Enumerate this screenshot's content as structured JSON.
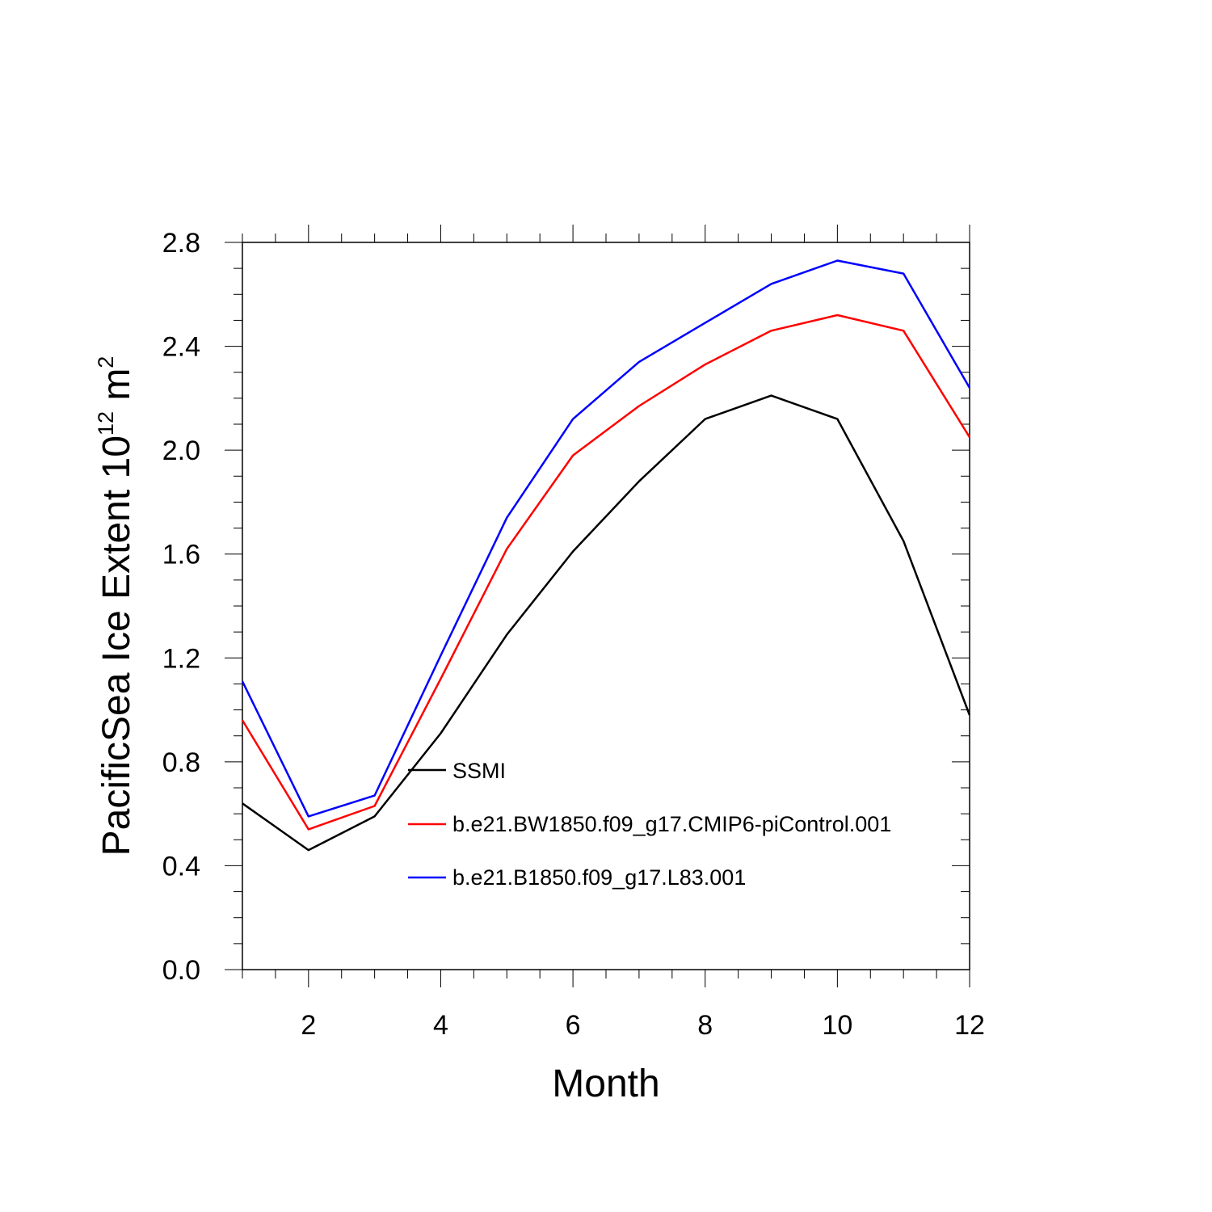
{
  "chart_data": {
    "type": "line",
    "xlabel": "Month",
    "ylabel_parts": {
      "main": "PacificSea Ice Extent 10",
      "exponent": "12",
      "unit": " m",
      "unit_exponent": "2"
    },
    "xlim": [
      1,
      12
    ],
    "ylim": [
      0,
      2.8
    ],
    "x_ticks": [
      2,
      4,
      6,
      8,
      10,
      12
    ],
    "x_tick_labels": [
      "2",
      "4",
      "6",
      "8",
      "10",
      "12"
    ],
    "y_ticks": [
      0,
      0.4,
      0.8,
      1.2,
      1.6,
      2.0,
      2.4,
      2.8
    ],
    "y_tick_labels": [
      "0.0",
      "0.4",
      "0.8",
      "1.2",
      "1.6",
      "2.0",
      "2.4",
      "2.8"
    ],
    "x": [
      1,
      2,
      3,
      4,
      5,
      6,
      7,
      8,
      9,
      10,
      11,
      12
    ],
    "series": [
      {
        "name": "SSMI",
        "color": "#000000",
        "values": [
          0.64,
          0.46,
          0.59,
          0.91,
          1.29,
          1.61,
          1.88,
          2.12,
          2.21,
          2.12,
          1.65,
          0.98
        ]
      },
      {
        "name": "b.e21.BW1850.f09_g17.CMIP6-piControl.001",
        "color": "#ff0000",
        "values": [
          0.96,
          0.54,
          0.63,
          1.12,
          1.62,
          1.98,
          2.17,
          2.33,
          2.46,
          2.52,
          2.46,
          2.05
        ]
      },
      {
        "name": "b.e21.B1850.f09_g17.L83.001",
        "color": "#0000ff",
        "values": [
          1.11,
          0.59,
          0.67,
          1.21,
          1.74,
          2.12,
          2.34,
          2.49,
          2.64,
          2.73,
          2.68,
          2.24
        ]
      }
    ],
    "grid": false,
    "legend_position": "lower-center-inside"
  }
}
